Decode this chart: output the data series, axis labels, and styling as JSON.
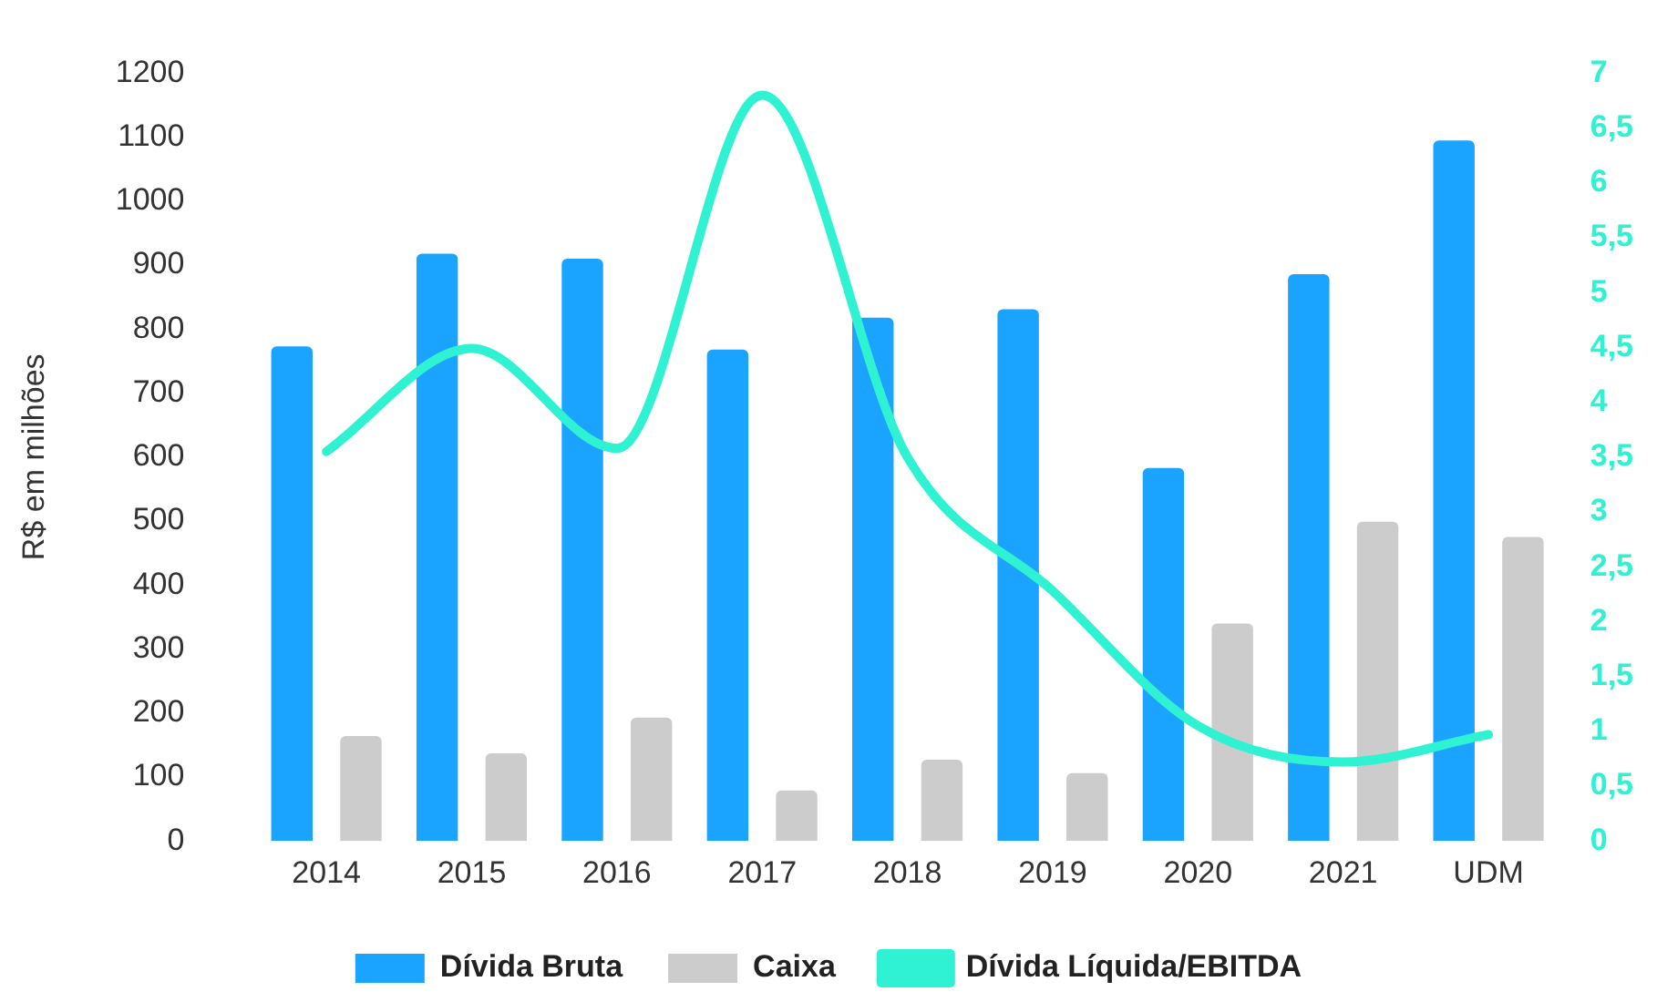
{
  "chart_data": {
    "type": "bar",
    "ylabel": "R$ em milhões",
    "categories": [
      "2014",
      "2015",
      "2016",
      "2017",
      "2018",
      "2019",
      "2020",
      "2021",
      "UDM"
    ],
    "series": [
      {
        "name": "Dívida Bruta",
        "color": "#1aa3ff",
        "values": [
          773,
          918,
          910,
          768,
          818,
          831,
          583,
          886,
          1095
        ]
      },
      {
        "name": "Caixa",
        "color": "#cccccc",
        "values": [
          164,
          137,
          193,
          79,
          127,
          106,
          340,
          499,
          475
        ]
      },
      {
        "name": "Dívida Líquida/EBITDA",
        "type": "line",
        "axis": "y2",
        "color": "#2ef2d2",
        "values": [
          3.55,
          4.49,
          3.58,
          6.8,
          3.5,
          2.28,
          1.05,
          0.72,
          0.97
        ]
      }
    ],
    "ylim": [
      0,
      1200
    ],
    "yticks": [
      0,
      100,
      200,
      300,
      400,
      500,
      600,
      700,
      800,
      900,
      1000,
      1100,
      1200
    ],
    "y2lim": [
      0,
      7
    ],
    "y2ticks": [
      0,
      {
        "value": 0.5,
        "label": "0,5"
      },
      1,
      {
        "value": 1.5,
        "label": "1,5"
      },
      2,
      {
        "value": 2.5,
        "label": "2,5"
      },
      3,
      {
        "value": 3.5,
        "label": "3,5"
      },
      4,
      {
        "value": 4.5,
        "label": "4,5"
      },
      5,
      {
        "value": 5.5,
        "label": "5,5"
      },
      6,
      {
        "value": 6.5,
        "label": "6,5"
      },
      7
    ],
    "legend": "bottom",
    "grid": false,
    "marker": "none"
  }
}
